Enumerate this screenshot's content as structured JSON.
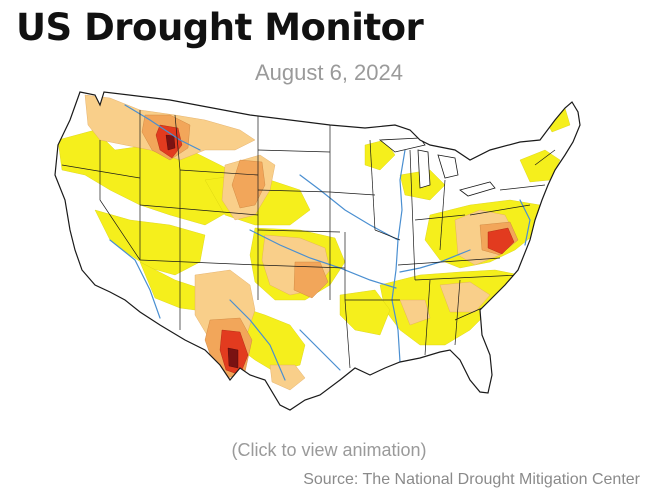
{
  "header": {
    "title": "US Drought Monitor",
    "date": "August 6, 2024"
  },
  "map": {
    "subject": "Contiguous United States drought conditions",
    "colors": {
      "abnormally_dry": "#f5ef1c",
      "moderate": "#f9cf8a",
      "severe": "#f2a65a",
      "extreme": "#e23b1f",
      "exceptional": "#7a1212",
      "state_borders": "#1a1a1a",
      "rivers": "#4a8fd1",
      "land": "#ffffff"
    }
  },
  "footer": {
    "click_note": "(Click to view animation)",
    "source": "Source: The National Drought Mitigation Center"
  }
}
